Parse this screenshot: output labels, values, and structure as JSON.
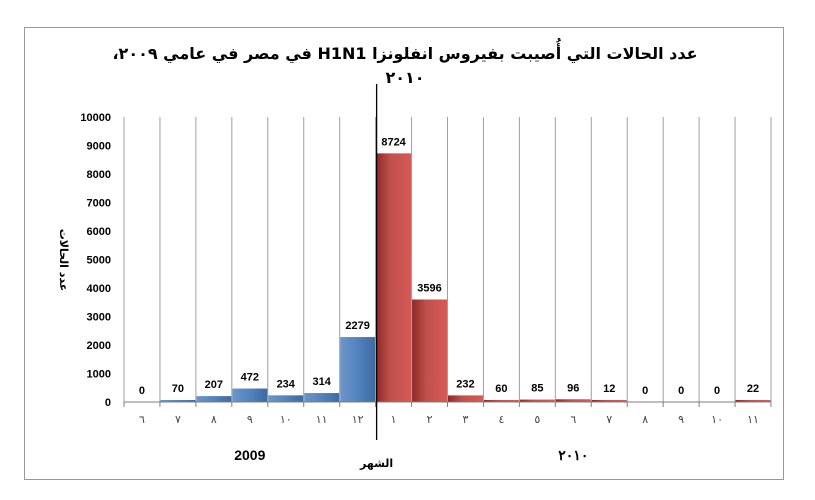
{
  "chart_data": {
    "type": "bar",
    "title": "عدد الحالات التي أُصيبت بفيروس انفلونزا H1N1 في مصر في عامي ٢٠٠٩، ٢٠١٠",
    "ylabel": "عدد الحالات",
    "xlabel": "الشهر",
    "ylim": [
      0,
      10000
    ],
    "yticks": [
      "0",
      "1000",
      "2000",
      "3000",
      "4000",
      "5000",
      "6000",
      "7000",
      "8000",
      "9000",
      "10000"
    ],
    "grid": "vertical",
    "categories": [
      "٦",
      "٧",
      "٨",
      "٩",
      "١٠",
      "١١",
      "١٢",
      "١",
      "٢",
      "٣",
      "٤",
      "٥",
      "٦",
      "٧",
      "٨",
      "٩",
      "١٠",
      "١١"
    ],
    "values": [
      0,
      70,
      207,
      472,
      234,
      314,
      2279,
      8724,
      3596,
      232,
      60,
      85,
      96,
      12,
      0,
      0,
      0,
      22
    ],
    "groups": [
      {
        "name": "2009",
        "start": 0,
        "end": 6,
        "color": "#4f81bd"
      },
      {
        "name": "٢٠١٠",
        "start": 7,
        "end": 17,
        "color": "#c0504d"
      }
    ]
  }
}
